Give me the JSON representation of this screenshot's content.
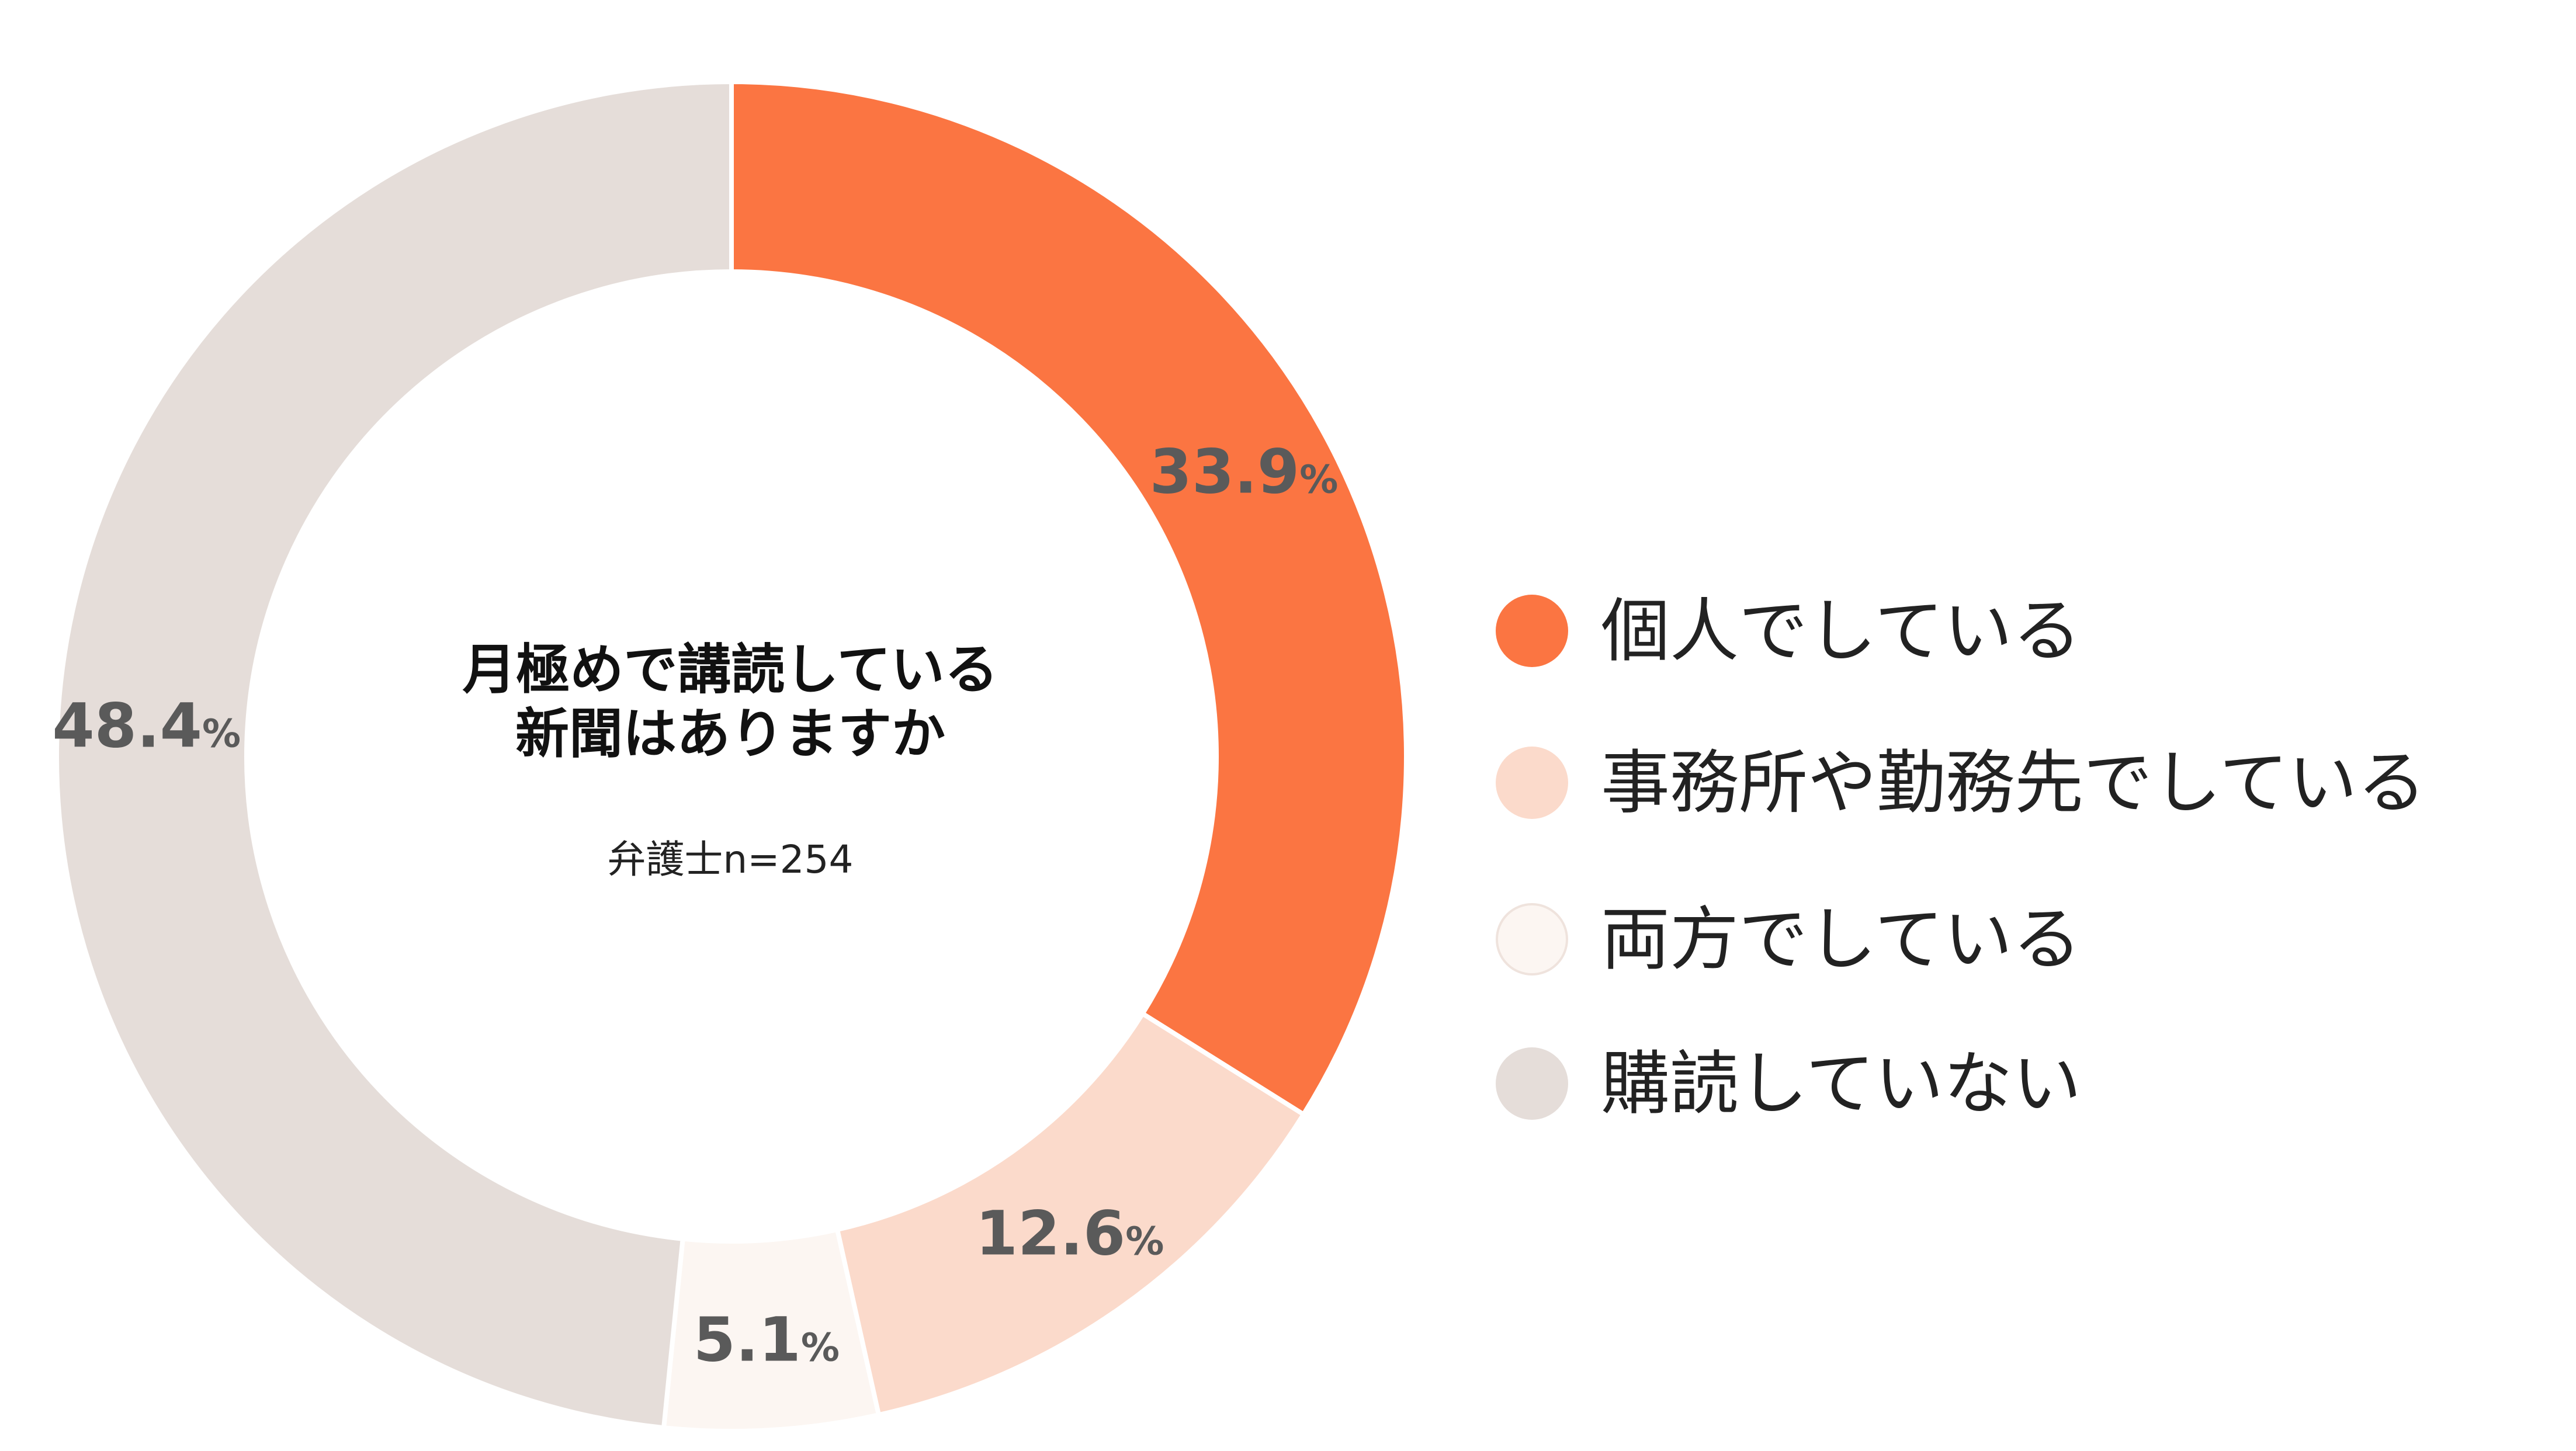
{
  "chart_data": {
    "type": "pie",
    "variant": "donut",
    "title": [
      "月極めで講読している",
      "新聞はありますか"
    ],
    "subtitle": "弁護士n=254",
    "categories": [
      "個人でしている",
      "事務所や勤務先でしている",
      "両方でしている",
      "購読していない"
    ],
    "values": [
      33.9,
      12.6,
      5.1,
      48.4
    ],
    "unit": "%",
    "value_labels": [
      "33.9",
      "12.6",
      "5.1",
      "48.4"
    ],
    "colors": [
      "#fb7542",
      "#fbdacb",
      "#fcf6f2",
      "#e5ddd9"
    ],
    "label_color": "#5a5a5a",
    "legend_position": "right"
  }
}
